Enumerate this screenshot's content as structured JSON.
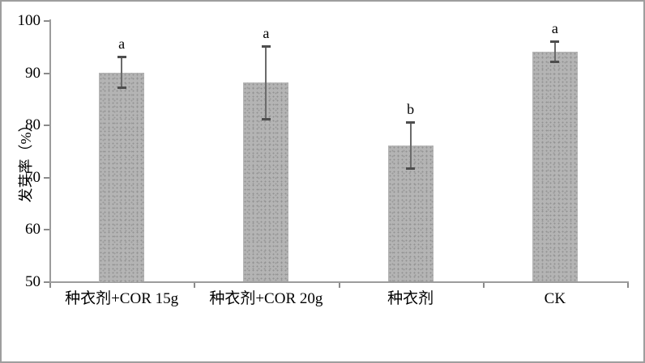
{
  "figure": {
    "background": "#ffffff",
    "border_color": "#9e9e9e"
  },
  "chart_data": {
    "type": "bar",
    "title": "",
    "xlabel": "",
    "ylabel": "发芽率（%）",
    "categories": [
      "种衣剂+COR 15g",
      "种衣剂+COR 20g",
      "种衣剂",
      "CK"
    ],
    "values": [
      90,
      88,
      76,
      94
    ],
    "error_bars": [
      3,
      7,
      4.5,
      2
    ],
    "sig_letters": [
      "a",
      "a",
      "b",
      "a"
    ],
    "ylim": [
      50,
      100
    ],
    "yticks": [
      50,
      60,
      70,
      80,
      90,
      100
    ],
    "grid": false,
    "legend_position": "none",
    "bar_color": "#b4b4b4",
    "bar_dot_color": "#929292",
    "axis_color": "#9c9c9c",
    "error_color": "#4d4d4d",
    "text_color": "#000000"
  }
}
